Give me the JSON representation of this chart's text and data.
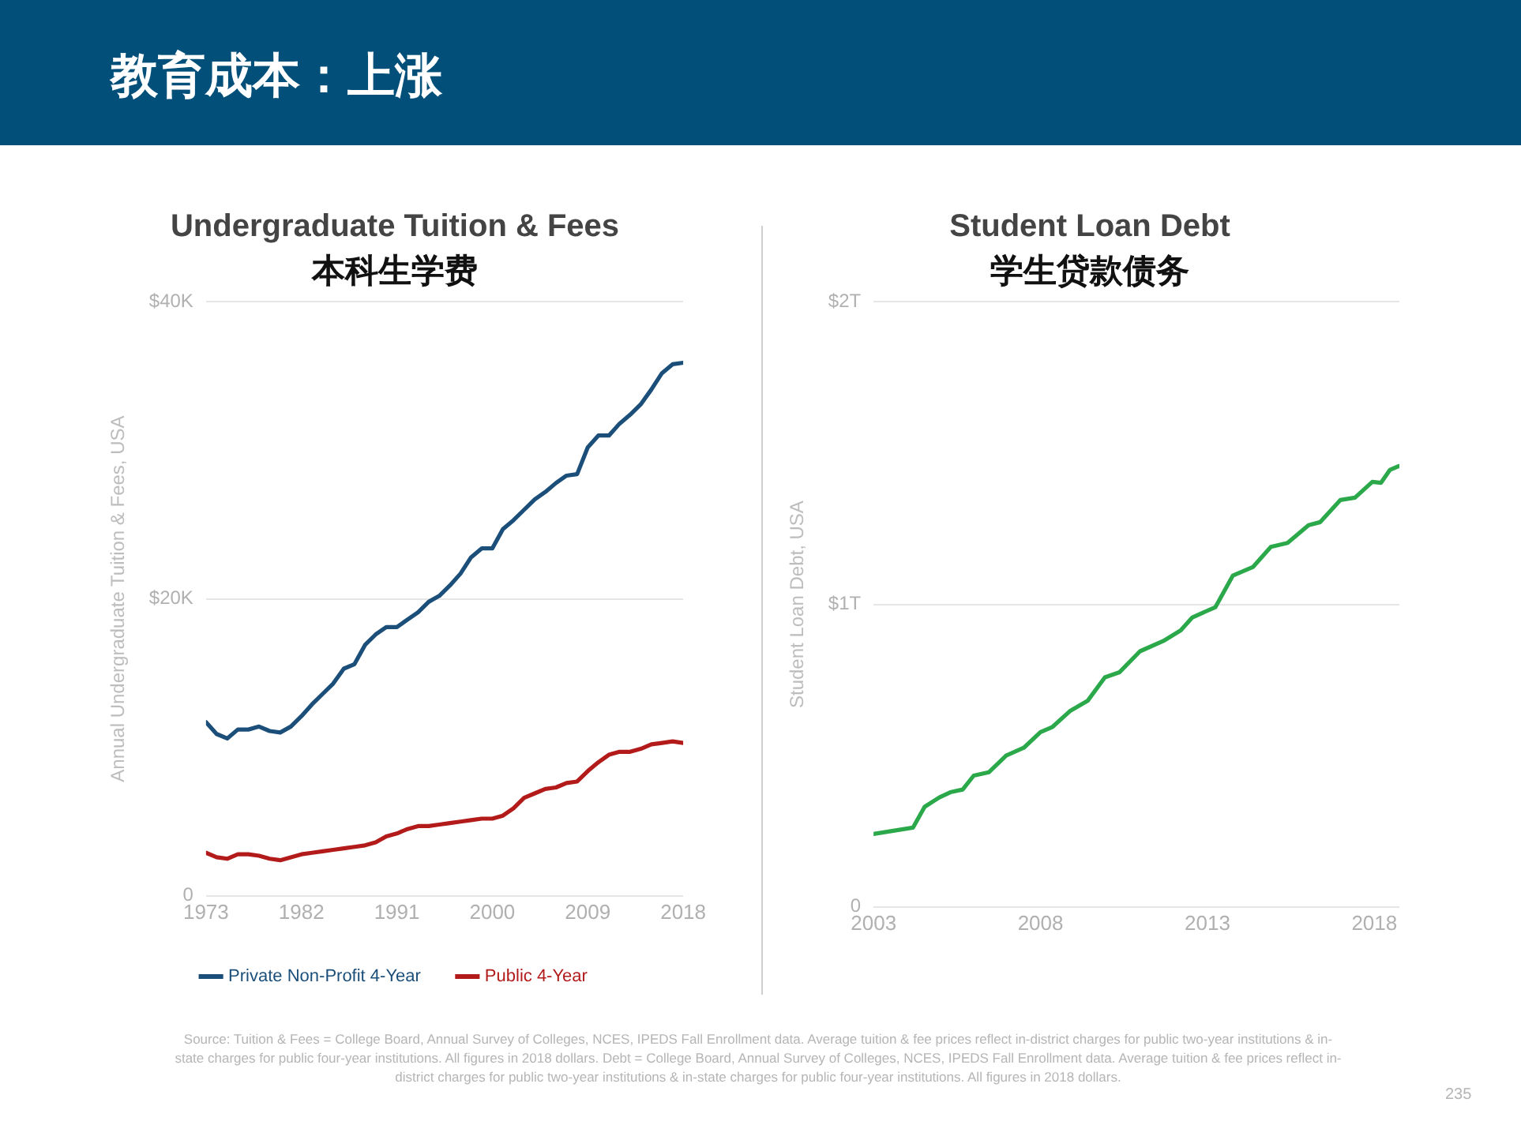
{
  "chart_data": [
    {
      "type": "line",
      "title": "Undergraduate Tuition & Fees",
      "subtitle": "本科生学费",
      "ylabel": "Annual Undergraduate Tuition & Fees, USA",
      "annotations": [
        "教育成本：上涨"
      ],
      "x": [
        1973,
        1974,
        1975,
        1976,
        1977,
        1978,
        1979,
        1980,
        1981,
        1982,
        1983,
        1984,
        1985,
        1986,
        1987,
        1988,
        1989,
        1990,
        1991,
        1992,
        1993,
        1994,
        1995,
        1996,
        1997,
        1998,
        1999,
        2000,
        2001,
        2002,
        2003,
        2004,
        2005,
        2006,
        2007,
        2008,
        2009,
        2010,
        2011,
        2012,
        2013,
        2014,
        2015,
        2016,
        2017,
        2018
      ],
      "series": [
        {
          "name": "Private Non-Profit 4-Year",
          "color": "#1b4f7a",
          "values": [
            11700,
            10900,
            10600,
            11200,
            11200,
            11400,
            11100,
            11000,
            11400,
            12100,
            12900,
            13600,
            14300,
            15300,
            15600,
            16900,
            17600,
            18100,
            18100,
            18600,
            19100,
            19800,
            20200,
            20900,
            21700,
            22800,
            23400,
            23400,
            24700,
            25300,
            26000,
            26700,
            27200,
            27800,
            28300,
            28400,
            30200,
            31000,
            31000,
            31800,
            32400,
            33100,
            34100,
            35200,
            35800,
            35900
          ]
        },
        {
          "name": "Public 4-Year",
          "color": "#b31b1b",
          "values": [
            2900,
            2600,
            2500,
            2800,
            2800,
            2700,
            2500,
            2400,
            2600,
            2800,
            2900,
            3000,
            3100,
            3200,
            3300,
            3400,
            3600,
            4000,
            4200,
            4500,
            4700,
            4700,
            4800,
            4900,
            5000,
            5100,
            5200,
            5200,
            5400,
            5900,
            6600,
            6900,
            7200,
            7300,
            7600,
            7700,
            8400,
            9000,
            9500,
            9700,
            9700,
            9900,
            10200,
            10300,
            10400,
            10300
          ]
        }
      ],
      "xlim": [
        1973,
        2018
      ],
      "xticks": [
        1973,
        1982,
        1991,
        2000,
        2009,
        2018
      ],
      "ylim": [
        0,
        40000
      ],
      "yticks": [
        {
          "value": 0,
          "label": "0"
        },
        {
          "value": 20000,
          "label": "$20K"
        },
        {
          "value": 40000,
          "label": "$40K"
        }
      ],
      "grid": "y",
      "legend": "bottom",
      "marker": "none",
      "line_style": "solid"
    },
    {
      "type": "line",
      "title": "Student Loan Debt",
      "subtitle": "学生贷款债务",
      "ylabel": "Student Loan Debt, USA",
      "annotations": [
        "Source: Tuition & Fees = College Board, Annual Survey of Colleges, NCES, IPEDS Fall Enrollment data. Average tuition & fee prices reflect in-district charges for public two-year institutions & in-state charges for public four-year institutions. All figures in 2018 dollars. Debt = College Board, Annual Survey of Colleges, NCES, IPEDS Fall Enrollment data. Average tuition & fee prices reflect in-district charges for public two-year institutions & in-state charges for public four-year institutions. All figures in 2018 dollars.",
        "235"
      ],
      "x": [
        2003.0,
        2004.18,
        2004.53,
        2004.97,
        2005.3,
        2005.67,
        2006.0,
        2006.45,
        2006.97,
        2007.5,
        2008.0,
        2008.36,
        2008.88,
        2009.41,
        2009.93,
        2010.37,
        2010.98,
        2011.68,
        2012.2,
        2012.55,
        2013.24,
        2013.76,
        2014.37,
        2014.9,
        2015.4,
        2016.03,
        2016.38,
        2016.98,
        2017.42,
        2017.94,
        2018.2,
        2018.47,
        2018.73
      ],
      "series": [
        {
          "color": "#2aa84a",
          "values": [
            0.241,
            0.262,
            0.331,
            0.362,
            0.379,
            0.388,
            0.434,
            0.445,
            0.5,
            0.526,
            0.578,
            0.595,
            0.647,
            0.681,
            0.759,
            0.776,
            0.845,
            0.879,
            0.914,
            0.957,
            0.991,
            1.095,
            1.124,
            1.19,
            1.203,
            1.262,
            1.272,
            1.345,
            1.353,
            1.405,
            1.402,
            1.445,
            1.457
          ]
        }
      ],
      "xlim": [
        2003,
        2018.75
      ],
      "xticks": [
        2003,
        2008,
        2013,
        2018
      ],
      "ylim": [
        0,
        2
      ],
      "yticks": [
        {
          "value": 0,
          "label": "0"
        },
        {
          "value": 1,
          "label": "$1T"
        },
        {
          "value": 2,
          "label": "$2T"
        }
      ],
      "grid": "y",
      "legend": false,
      "marker": "none",
      "line_style": "solid"
    }
  ]
}
